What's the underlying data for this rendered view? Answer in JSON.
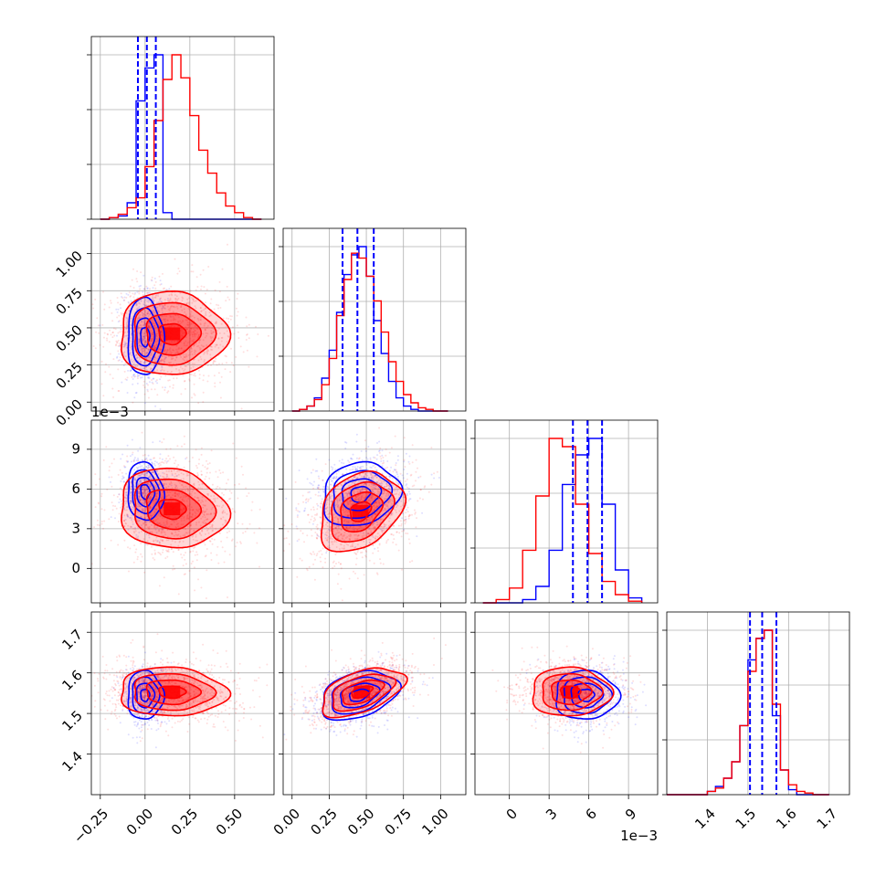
{
  "colors": {
    "series_a": "#0000ff",
    "series_b": "#ff0000",
    "grid": "#b0b0b0"
  },
  "chart_data": {
    "type": "corner",
    "description_of_layout": "4x4 lower-triangular corner plot; diagonal 1D histograms, off-diagonal 2D density contours with scatter",
    "grid": true,
    "legend": "none",
    "series": [
      {
        "color": "#0000ff"
      },
      {
        "color": "#ff0000"
      }
    ],
    "parameters": [
      {
        "range": [
          -0.3,
          0.72
        ],
        "ticks": [
          -0.25,
          0.0,
          0.25,
          0.5
        ],
        "tick_labels": [
          "−0.25",
          "0.00",
          "0.25",
          "0.50"
        ],
        "offset": ""
      },
      {
        "range": [
          -0.06,
          1.17
        ],
        "ticks": [
          0.0,
          0.25,
          0.5,
          0.75,
          1.0
        ],
        "tick_labels": [
          "0.00",
          "0.25",
          "0.50",
          "0.75",
          "1.00"
        ],
        "offset": ""
      },
      {
        "range": [
          -2.6,
          11.2
        ],
        "ticks": [
          0,
          3,
          6,
          9
        ],
        "tick_labels": [
          "0",
          "3",
          "6",
          "9"
        ],
        "offset": "1e−3"
      },
      {
        "range": [
          1.3,
          1.75
        ],
        "ticks": [
          1.4,
          1.5,
          1.6,
          1.7
        ],
        "tick_labels": [
          "1.4",
          "1.5",
          "1.6",
          "1.7"
        ],
        "offset": ""
      }
    ],
    "diagonal_histograms": [
      {
        "bins": [
          -0.25,
          -0.2,
          -0.15,
          -0.1,
          -0.05,
          0.0,
          0.05,
          0.1,
          0.15,
          0.2,
          0.25,
          0.3,
          0.35,
          0.4,
          0.45,
          0.5,
          0.55,
          0.6,
          0.65
        ],
        "series_a": [
          0.0,
          0.01,
          0.02,
          0.1,
          0.72,
          0.92,
          1.0,
          0.04,
          0.0,
          0.0,
          0.0,
          0.0,
          0.0,
          0.0,
          0.0,
          0.0,
          0.0,
          0.0
        ],
        "series_b": [
          0.0,
          0.01,
          0.03,
          0.07,
          0.13,
          0.32,
          0.6,
          0.85,
          1.0,
          0.86,
          0.63,
          0.42,
          0.28,
          0.16,
          0.08,
          0.04,
          0.01,
          0.0
        ],
        "quantiles_a": [
          -0.04,
          0.01,
          0.06
        ]
      },
      {
        "bins": [
          0.0,
          0.05,
          0.1,
          0.15,
          0.2,
          0.25,
          0.3,
          0.35,
          0.4,
          0.45,
          0.5,
          0.55,
          0.6,
          0.65,
          0.7,
          0.75,
          0.8,
          0.85,
          0.9,
          0.95,
          1.0,
          1.05
        ],
        "series_a": [
          0.0,
          0.01,
          0.03,
          0.08,
          0.2,
          0.37,
          0.6,
          0.83,
          0.95,
          1.0,
          0.82,
          0.55,
          0.35,
          0.18,
          0.08,
          0.03,
          0.01,
          0.0,
          0.0,
          0.0,
          0.0
        ],
        "series_b": [
          0.0,
          0.01,
          0.03,
          0.07,
          0.16,
          0.32,
          0.58,
          0.8,
          0.96,
          0.93,
          0.82,
          0.67,
          0.48,
          0.3,
          0.18,
          0.1,
          0.05,
          0.02,
          0.01,
          0.0,
          0.0
        ],
        "quantiles_a": [
          0.34,
          0.44,
          0.55
        ]
      },
      {
        "bins": [
          -2,
          -1,
          0,
          1,
          2,
          3,
          4,
          5,
          6,
          7,
          8,
          9,
          10
        ],
        "series_a": [
          0.0,
          0.0,
          0.0,
          0.02,
          0.1,
          0.32,
          0.72,
          0.9,
          1.0,
          0.6,
          0.2,
          0.03
        ],
        "series_b": [
          0.0,
          0.02,
          0.09,
          0.32,
          0.65,
          1.0,
          0.95,
          0.6,
          0.3,
          0.13,
          0.05,
          0.01
        ],
        "quantiles_a": [
          4.8,
          5.9,
          7.0
        ]
      },
      {
        "bins": [
          1.3,
          1.32,
          1.34,
          1.36,
          1.38,
          1.4,
          1.42,
          1.44,
          1.46,
          1.48,
          1.5,
          1.52,
          1.54,
          1.56,
          1.58,
          1.6,
          1.62,
          1.64,
          1.66,
          1.68,
          1.7
        ],
        "series_a": [
          0.0,
          0.0,
          0.0,
          0.0,
          0.0,
          0.02,
          0.05,
          0.1,
          0.2,
          0.42,
          0.82,
          0.95,
          1.0,
          0.48,
          0.15,
          0.03,
          0.0,
          0.0,
          0.0,
          0.0
        ],
        "series_b": [
          0.0,
          0.0,
          0.0,
          0.0,
          0.0,
          0.02,
          0.04,
          0.1,
          0.2,
          0.42,
          0.75,
          0.95,
          1.0,
          0.55,
          0.15,
          0.06,
          0.02,
          0.01,
          0.0,
          0.0
        ],
        "quantiles_a": [
          1.505,
          1.535,
          1.57
        ]
      }
    ],
    "pairs": [
      {
        "x": 0,
        "y": 1,
        "series_a": {
          "mean": [
            0.0,
            0.44
          ],
          "sd": [
            0.05,
            0.13
          ],
          "rho": 0.0
        },
        "series_b": {
          "mean": [
            0.15,
            0.46
          ],
          "sd": [
            0.15,
            0.14
          ],
          "rho": 0.0
        }
      },
      {
        "x": 0,
        "y": 2,
        "series_a": {
          "mean": [
            0.0,
            5.8
          ],
          "sd": [
            0.05,
            1.1
          ],
          "rho": -0.1
        },
        "series_b": {
          "mean": [
            0.15,
            4.5
          ],
          "sd": [
            0.15,
            1.5
          ],
          "rho": -0.1
        }
      },
      {
        "x": 1,
        "y": 2,
        "series_a": {
          "mean": [
            0.46,
            5.6
          ],
          "sd": [
            0.13,
            1.2
          ],
          "rho": 0.15
        },
        "series_b": {
          "mean": [
            0.46,
            4.3
          ],
          "sd": [
            0.14,
            1.5
          ],
          "rho": 0.3
        }
      },
      {
        "x": 0,
        "y": 3,
        "series_a": {
          "mean": [
            0.0,
            1.545
          ],
          "sd": [
            0.05,
            0.03
          ],
          "rho": 0.0
        },
        "series_b": {
          "mean": [
            0.15,
            1.553
          ],
          "sd": [
            0.15,
            0.03
          ],
          "rho": -0.05
        }
      },
      {
        "x": 1,
        "y": 3,
        "series_a": {
          "mean": [
            0.45,
            1.545
          ],
          "sd": [
            0.13,
            0.03
          ],
          "rho": 0.35
        },
        "series_b": {
          "mean": [
            0.47,
            1.553
          ],
          "sd": [
            0.14,
            0.03
          ],
          "rho": 0.5
        }
      },
      {
        "x": 2,
        "y": 3,
        "series_a": {
          "mean": [
            5.8,
            1.545
          ],
          "sd": [
            1.2,
            0.03
          ],
          "rho": 0.0
        },
        "series_b": {
          "mean": [
            4.6,
            1.553
          ],
          "sd": [
            1.5,
            0.03
          ],
          "rho": 0.0
        }
      }
    ],
    "contour_levels_sigma": [
      0.5,
      1.0,
      1.5,
      2.0
    ]
  }
}
